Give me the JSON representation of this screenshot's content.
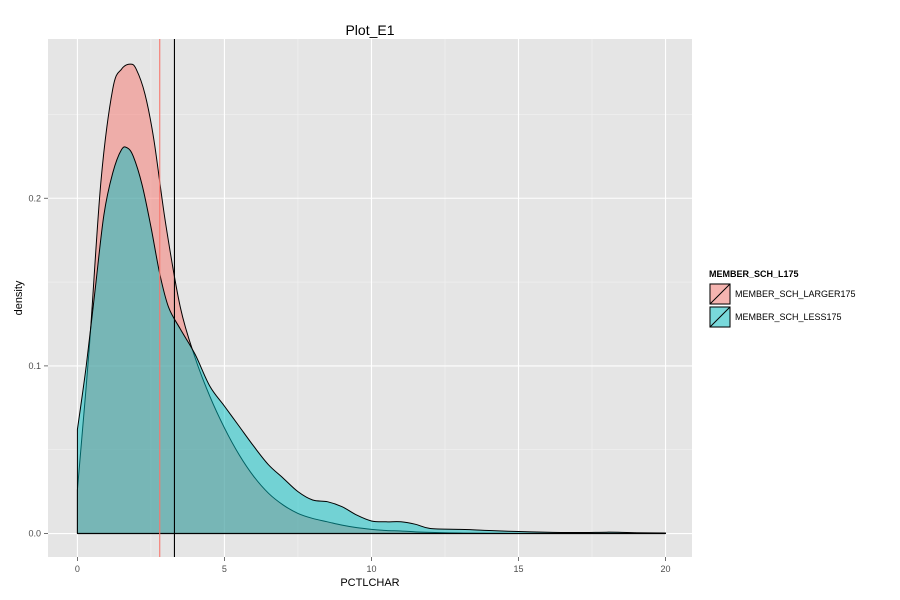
{
  "chart_data": {
    "type": "area",
    "title": "Plot_E1",
    "xlabel": "PCTLCHAR",
    "ylabel": "density",
    "xlim": [
      -1.0,
      20.9
    ],
    "ylim": [
      -0.014,
      0.295
    ],
    "x_ticks": [
      0,
      5,
      10,
      15,
      20
    ],
    "x_tick_labels": [
      "0",
      "5",
      "10",
      "15",
      "20"
    ],
    "y_ticks": [
      0.0,
      0.1,
      0.2
    ],
    "y_tick_labels": [
      "0.0",
      "0.1",
      "0.2"
    ],
    "grid": true,
    "legend": {
      "title": "MEMBER_SCH_L175",
      "position": "right"
    },
    "series": [
      {
        "name": "MEMBER_SCH_LARGER175",
        "color": "#F8766D",
        "x": [
          0,
          0.4,
          0.8,
          1.2,
          1.5,
          1.8,
          2.0,
          2.3,
          2.6,
          3.0,
          3.5,
          4.0,
          4.5,
          5.0,
          5.5,
          6.0,
          6.5,
          7.0,
          7.5,
          8.0,
          8.5,
          9.0,
          9.5,
          10.0,
          10.5,
          11.0,
          11.5,
          12.0,
          13.0,
          14.0,
          15.0
        ],
        "values": [
          0.026,
          0.11,
          0.21,
          0.265,
          0.277,
          0.28,
          0.277,
          0.262,
          0.235,
          0.185,
          0.135,
          0.105,
          0.082,
          0.063,
          0.047,
          0.034,
          0.024,
          0.017,
          0.012,
          0.009,
          0.007,
          0.005,
          0.0035,
          0.0025,
          0.0018,
          0.0015,
          0.001,
          0.0007,
          0.0003,
          0.0001,
          0.0
        ]
      },
      {
        "name": "MEMBER_SCH_LESS175",
        "color": "#00BFC4",
        "x": [
          0,
          0.3,
          0.6,
          0.9,
          1.2,
          1.5,
          1.7,
          1.9,
          2.2,
          2.5,
          2.8,
          3.1,
          3.5,
          4.0,
          4.5,
          5.0,
          5.5,
          6.0,
          6.5,
          7.0,
          7.5,
          8.0,
          8.5,
          9.0,
          9.5,
          10.0,
          10.5,
          11.0,
          11.5,
          12.0,
          13.0,
          13.5,
          14.0,
          15.0,
          16.0,
          17.0,
          18.0,
          18.5,
          19.0,
          20.0
        ],
        "values": [
          0.062,
          0.1,
          0.145,
          0.19,
          0.215,
          0.229,
          0.23,
          0.225,
          0.208,
          0.183,
          0.155,
          0.135,
          0.122,
          0.107,
          0.088,
          0.076,
          0.064,
          0.052,
          0.041,
          0.033,
          0.025,
          0.02,
          0.019,
          0.016,
          0.011,
          0.0075,
          0.007,
          0.007,
          0.0055,
          0.003,
          0.0025,
          0.0022,
          0.0018,
          0.0012,
          0.0008,
          0.0006,
          0.0008,
          0.0007,
          0.0005,
          0.0003
        ]
      }
    ],
    "reference_lines": [
      {
        "x": 2.8,
        "color": "#F8766D"
      },
      {
        "x": 3.3,
        "color": "#000000"
      }
    ]
  }
}
